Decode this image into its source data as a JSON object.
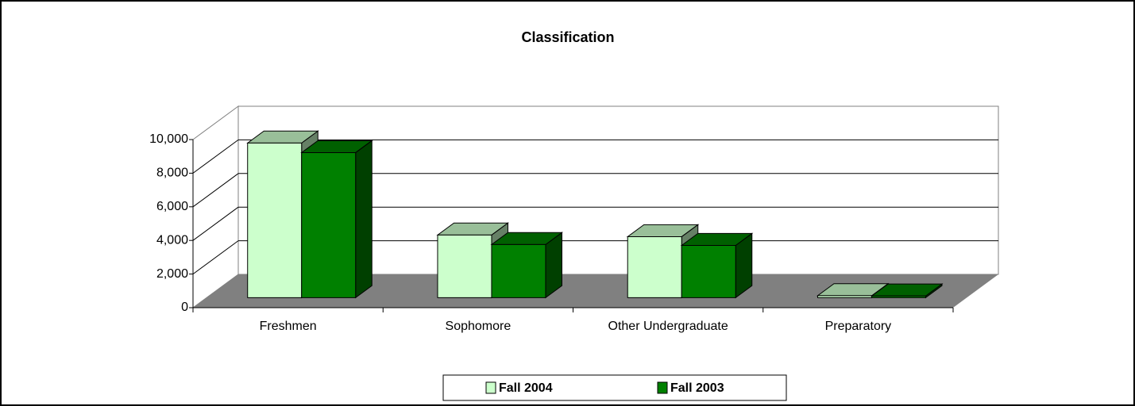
{
  "chart_data": {
    "type": "bar3d",
    "title": "Classification",
    "categories": [
      "Freshmen",
      "Sophomore",
      "Other Undergraduate",
      "Preparatory"
    ],
    "series": [
      {
        "name": "Fall 2004",
        "color": "#ccffcc",
        "values": [
          9200,
          3730,
          3630,
          120
        ]
      },
      {
        "name": "Fall 2003",
        "color": "#008000",
        "values": [
          8630,
          3160,
          3110,
          100
        ]
      }
    ],
    "ylim": [
      0,
      10000
    ],
    "yticks": [
      0,
      {
        "value": 2000,
        "label": "2,000"
      },
      {
        "value": 4000,
        "label": "4,000"
      },
      {
        "value": 6000,
        "label": "6,000"
      },
      {
        "value": 8000,
        "label": "8,000"
      },
      {
        "value": 10000,
        "label": "10,000"
      }
    ],
    "grid": true
  }
}
